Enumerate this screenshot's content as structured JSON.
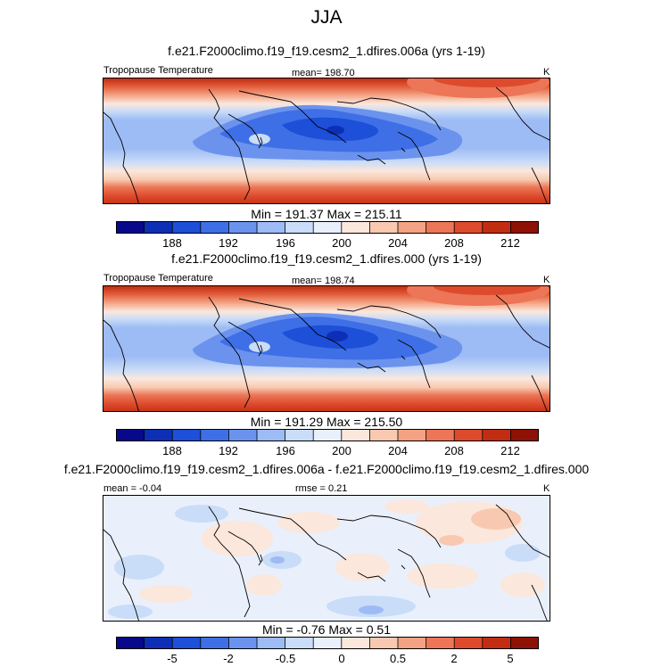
{
  "title": "JJA",
  "colors": {
    "temp_scale": [
      "#08088a",
      "#0d2fb5",
      "#1d4fd8",
      "#3f6fe6",
      "#6b93ee",
      "#9dbbf4",
      "#c9dcf8",
      "#e9f0fb",
      "#fbe7dc",
      "#f8c9b0",
      "#f3a283",
      "#ec7657",
      "#dd4b2c",
      "#c22d12",
      "#8e1106"
    ],
    "diff_scale": [
      "#08088a",
      "#0d2fb5",
      "#1d4fd8",
      "#3f6fe6",
      "#6b93ee",
      "#9dbbf4",
      "#c9dcf8",
      "#e9f0fb",
      "#fbe7dc",
      "#f8c9b0",
      "#f3a283",
      "#ec7657",
      "#dd4b2c",
      "#c22d12",
      "#8e1106"
    ],
    "coastline": "#000000"
  },
  "panels": [
    {
      "title": "f.e21.F2000climo.f19_f19.cesm2_1.dfires.006a (yrs 1-19)",
      "left_label": "Tropopause Temperature",
      "center_label": "mean= 198.70",
      "right_label": "K",
      "minmax": "Min = 191.37 Max = 215.11",
      "ticks": [
        "188",
        "192",
        "196",
        "200",
        "204",
        "208",
        "212"
      ]
    },
    {
      "title": "f.e21.F2000climo.f19_f19.cesm2_1.dfires.000 (yrs 1-19)",
      "left_label": "Tropopause Temperature",
      "center_label": "mean= 198.74",
      "right_label": "K",
      "minmax": "Min = 191.29 Max = 215.50",
      "ticks": [
        "188",
        "192",
        "196",
        "200",
        "204",
        "208",
        "212"
      ]
    },
    {
      "title": "f.e21.F2000climo.f19_f19.cesm2_1.dfires.006a - f.e21.F2000climo.f19_f19.cesm2_1.dfires.000",
      "left_label": "mean =  -0.04",
      "center_label": "rmse =  0.21",
      "right_label": "K",
      "minmax": "Min =  -0.76 Max =   0.51",
      "ticks": [
        "-5",
        "-2",
        "-0.5",
        "0",
        "0.5",
        "2",
        "5"
      ]
    }
  ]
}
